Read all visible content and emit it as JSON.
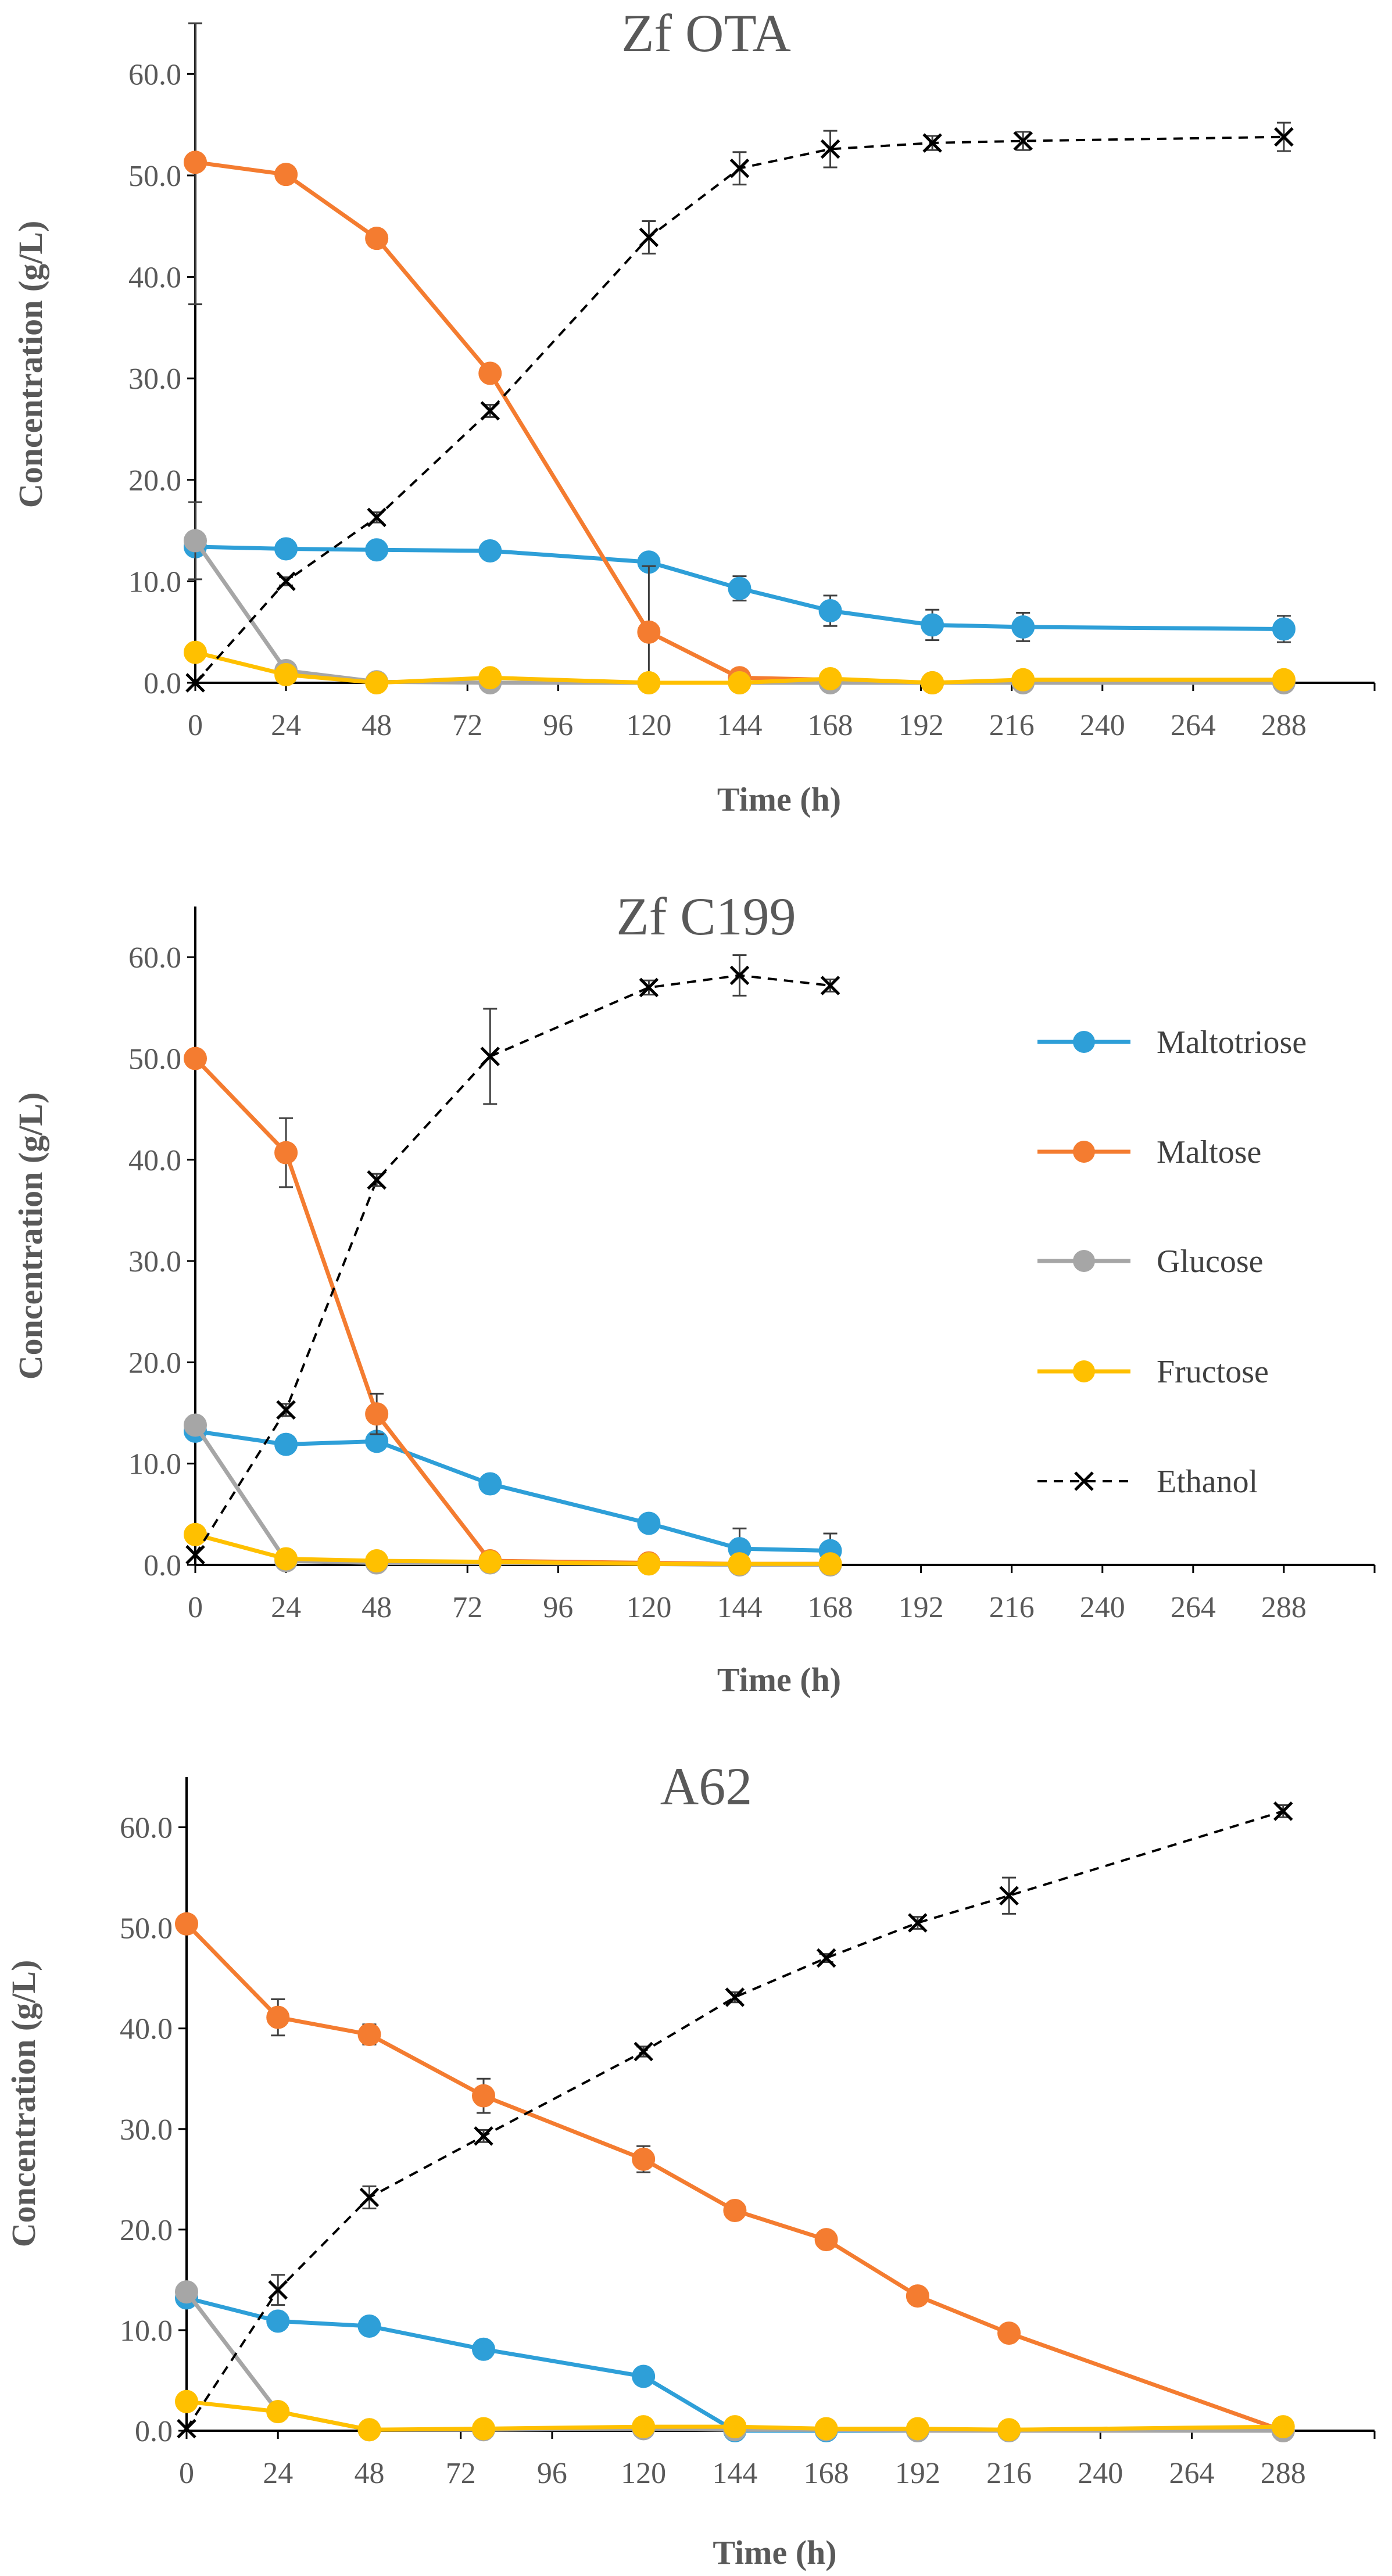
{
  "colors": {
    "maltotriose": "#2E9FD8",
    "maltose": "#F47C30",
    "glucose": "#A6A6A6",
    "fructose": "#FFC000",
    "ethanol": "#000000",
    "axis": "#000000",
    "text": "#595959"
  },
  "legend": {
    "items": [
      {
        "name": "Maltotriose",
        "key": "maltotriose",
        "style": "line-dot"
      },
      {
        "name": "Maltose",
        "key": "maltose",
        "style": "line-dot"
      },
      {
        "name": "Glucose",
        "key": "glucose",
        "style": "line-dot"
      },
      {
        "name": "Fructose",
        "key": "fructose",
        "style": "line-dot"
      },
      {
        "name": "Ethanol",
        "key": "ethanol",
        "style": "dash-x"
      }
    ]
  },
  "chart_data": [
    {
      "type": "line",
      "title": "Zf OTA",
      "xlabel": "Time (h)",
      "ylabel": "Concentration (g/L)",
      "xlim": [
        0,
        312
      ],
      "ylim": [
        0,
        65
      ],
      "xticks": [
        "0",
        "24",
        "48",
        "72",
        "96",
        "120",
        "144",
        "168",
        "192",
        "216",
        "240",
        "264",
        "288"
      ],
      "yticks": [
        "0.0",
        "10.0",
        "20.0",
        "30.0",
        "40.0",
        "50.0",
        "60.0"
      ],
      "series": [
        {
          "name": "Maltotriose",
          "key": "maltotriose",
          "x": [
            0,
            24,
            48,
            78,
            120,
            144,
            168,
            195,
            219,
            288
          ],
          "y": [
            13.4,
            13.2,
            13.1,
            13.0,
            11.9,
            9.3,
            7.1,
            5.7,
            5.5,
            5.3
          ],
          "err": [
            0.4,
            0.3,
            0.3,
            0.3,
            0.8,
            1.2,
            1.5,
            1.5,
            1.4,
            1.3
          ]
        },
        {
          "name": "Maltose",
          "key": "maltose",
          "x": [
            0,
            24,
            48,
            78,
            120,
            144,
            168,
            195,
            219,
            288
          ],
          "y": [
            51.3,
            50.1,
            43.8,
            30.5,
            5.0,
            0.5,
            0.3,
            0.0,
            0.2,
            0.2
          ],
          "err": [
            14.0,
            0.5,
            0.3,
            0.4,
            6.5,
            0.8,
            0.3,
            0.1,
            0.1,
            0.1
          ]
        },
        {
          "name": "Glucose",
          "key": "glucose",
          "x": [
            0,
            24,
            48,
            78,
            120,
            144,
            168,
            195,
            219,
            288
          ],
          "y": [
            14.0,
            1.2,
            0.1,
            0.0,
            0.0,
            0.0,
            0.0,
            0.0,
            0.0,
            0.0
          ],
          "err": [
            3.8,
            0.3,
            0.1,
            0.0,
            0.0,
            0.0,
            0.0,
            0.0,
            0.0,
            0.0
          ]
        },
        {
          "name": "Fructose",
          "key": "fructose",
          "x": [
            0,
            24,
            48,
            78,
            120,
            144,
            168,
            195,
            219,
            288
          ],
          "y": [
            3.0,
            0.8,
            0.0,
            0.5,
            0.0,
            0.0,
            0.4,
            0.0,
            0.3,
            0.3
          ],
          "err": [
            0.2,
            0.2,
            0.0,
            0.2,
            0.0,
            0.0,
            0.2,
            0.0,
            0.1,
            0.1
          ]
        },
        {
          "name": "Ethanol",
          "key": "ethanol",
          "x": [
            0,
            24,
            48,
            78,
            120,
            144,
            168,
            195,
            219,
            288
          ],
          "y": [
            0.0,
            10.0,
            16.3,
            26.8,
            43.9,
            50.7,
            52.6,
            53.2,
            53.4,
            53.8
          ],
          "err": [
            0.2,
            0.4,
            0.5,
            0.6,
            1.6,
            1.6,
            1.8,
            0.7,
            0.9,
            1.4
          ]
        }
      ]
    },
    {
      "type": "line",
      "title": "Zf C199",
      "xlabel": "Time (h)",
      "ylabel": "Concentration (g/L)",
      "xlim": [
        0,
        312
      ],
      "ylim": [
        0,
        65
      ],
      "xticks": [
        "0",
        "24",
        "48",
        "72",
        "96",
        "120",
        "144",
        "168",
        "192",
        "216",
        "240",
        "264",
        "288"
      ],
      "yticks": [
        "0.0",
        "10.0",
        "20.0",
        "30.0",
        "40.0",
        "50.0",
        "60.0"
      ],
      "series": [
        {
          "name": "Maltotriose",
          "key": "maltotriose",
          "x": [
            0,
            24,
            48,
            78,
            120,
            144,
            168
          ],
          "y": [
            13.2,
            11.9,
            12.2,
            8.0,
            4.1,
            1.6,
            1.4
          ],
          "err": [
            0.4,
            0.4,
            0.4,
            0.4,
            0.5,
            2.0,
            1.7
          ]
        },
        {
          "name": "Maltose",
          "key": "maltose",
          "x": [
            0,
            24,
            48,
            78,
            120,
            144,
            168
          ],
          "y": [
            50.0,
            40.7,
            14.9,
            0.4,
            0.2,
            0.1,
            0.1
          ],
          "err": [
            0.4,
            3.4,
            2.0,
            0.2,
            0.1,
            0.1,
            0.1
          ]
        },
        {
          "name": "Glucose",
          "key": "glucose",
          "x": [
            0,
            24,
            48,
            78,
            120,
            144,
            168
          ],
          "y": [
            13.8,
            0.4,
            0.2,
            0.2,
            0.1,
            0.0,
            0.0
          ],
          "err": [
            0.5,
            0.1,
            0.1,
            0.1,
            0.0,
            0.0,
            0.0
          ]
        },
        {
          "name": "Fructose",
          "key": "fructose",
          "x": [
            0,
            24,
            48,
            78,
            120,
            144,
            168
          ],
          "y": [
            3.0,
            0.6,
            0.4,
            0.3,
            0.1,
            0.1,
            0.1
          ],
          "err": [
            0.2,
            0.1,
            0.1,
            0.1,
            0.1,
            0.1,
            0.1
          ]
        },
        {
          "name": "Ethanol",
          "key": "ethanol",
          "x": [
            0,
            24,
            48,
            78,
            120,
            144,
            168
          ],
          "y": [
            1.0,
            15.3,
            38.0,
            50.2,
            57.0,
            58.2,
            57.2
          ],
          "err": [
            0.2,
            0.6,
            0.6,
            4.7,
            0.7,
            2.0,
            0.6
          ]
        }
      ]
    },
    {
      "type": "line",
      "title": "A62",
      "xlabel": "Time (h)",
      "ylabel": "Concentration (g/L)",
      "xlim": [
        0,
        312
      ],
      "ylim": [
        0,
        65
      ],
      "xticks": [
        "0",
        "24",
        "48",
        "72",
        "96",
        "120",
        "144",
        "168",
        "192",
        "216",
        "240",
        "264",
        "288"
      ],
      "yticks": [
        "0.0",
        "10.0",
        "20.0",
        "30.0",
        "40.0",
        "50.0",
        "60.0"
      ],
      "series": [
        {
          "name": "Maltotriose",
          "key": "maltotriose",
          "x": [
            0,
            24,
            48,
            78,
            120,
            144,
            168,
            192,
            216,
            288
          ],
          "y": [
            13.2,
            10.9,
            10.4,
            8.1,
            5.4,
            0.0,
            0.0,
            0.0,
            0.0,
            0.0
          ],
          "err": [
            0.4,
            0.4,
            0.4,
            0.4,
            0.5,
            0.0,
            0.0,
            0.0,
            0.0,
            0.0
          ]
        },
        {
          "name": "Maltose",
          "key": "maltose",
          "x": [
            0,
            24,
            48,
            78,
            120,
            144,
            168,
            192,
            216,
            288
          ],
          "y": [
            50.4,
            41.1,
            39.4,
            33.3,
            27.0,
            21.9,
            19.0,
            13.4,
            9.7,
            0.0
          ],
          "err": [
            0.4,
            1.8,
            1.0,
            1.7,
            1.3,
            0.5,
            0.6,
            0.4,
            0.4,
            0.1
          ]
        },
        {
          "name": "Glucose",
          "key": "glucose",
          "x": [
            0,
            24,
            48,
            78,
            120,
            144,
            168,
            192,
            216,
            288
          ],
          "y": [
            13.8,
            1.9,
            0.1,
            0.1,
            0.2,
            0.1,
            0.1,
            0.0,
            0.0,
            0.0
          ],
          "err": [
            0.5,
            0.2,
            0.1,
            0.1,
            0.1,
            0.1,
            0.1,
            0.0,
            0.0,
            0.0
          ]
        },
        {
          "name": "Fructose",
          "key": "fructose",
          "x": [
            0,
            24,
            48,
            78,
            120,
            144,
            168,
            192,
            216,
            288
          ],
          "y": [
            2.9,
            1.9,
            0.1,
            0.2,
            0.4,
            0.4,
            0.2,
            0.2,
            0.1,
            0.4
          ],
          "err": [
            0.2,
            0.2,
            0.1,
            0.1,
            0.2,
            0.2,
            0.1,
            0.1,
            0.1,
            0.1
          ]
        },
        {
          "name": "Ethanol",
          "key": "ethanol",
          "x": [
            0,
            24,
            48,
            78,
            120,
            144,
            168,
            192,
            216,
            288
          ],
          "y": [
            0.2,
            14.0,
            23.2,
            29.3,
            37.7,
            43.1,
            47.0,
            50.5,
            53.2,
            61.6
          ],
          "err": [
            0.2,
            1.5,
            1.1,
            0.6,
            0.5,
            0.5,
            0.4,
            0.6,
            1.8,
            0.6
          ]
        }
      ]
    }
  ]
}
